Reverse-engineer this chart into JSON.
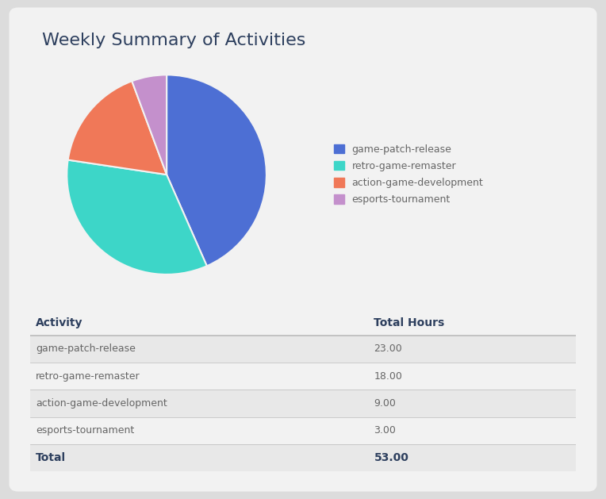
{
  "title": "Weekly Summary of Activities",
  "title_color": "#2d3f5e",
  "background_outer": "#dcdcdc",
  "background_card": "#f2f2f2",
  "pie_values": [
    23,
    18,
    9,
    3
  ],
  "pie_colors": [
    "#4d6fd4",
    "#3dd6c8",
    "#f07858",
    "#c490cc"
  ],
  "legend_labels": [
    "game-patch-release",
    "retro-game-remaster",
    "action-game-development",
    "esports-tournament"
  ],
  "table_headers": [
    "Activity",
    "Total Hours"
  ],
  "table_rows": [
    [
      "game-patch-release",
      "23.00"
    ],
    [
      "retro-game-remaster",
      "18.00"
    ],
    [
      "action-game-development",
      "9.00"
    ],
    [
      "esports-tournament",
      "3.00"
    ]
  ],
  "table_total": [
    "Total",
    "53.00"
  ],
  "row_colors_alt": [
    "#e8e8e8",
    "#f2f2f2",
    "#e8e8e8",
    "#f2f2f2"
  ],
  "total_row_color": "#e8e8e8",
  "header_text_color": "#2d3f5e",
  "cell_text_color": "#666666",
  "total_text_color": "#2d3f5e",
  "table_line_color": "#bbbbbb",
  "title_fontsize": 16,
  "cell_fontsize": 9,
  "header_fontsize": 10
}
